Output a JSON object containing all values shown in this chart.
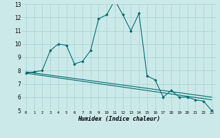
{
  "xlabel": "Humidex (Indice chaleur)",
  "background_color": "#cce9ea",
  "grid_color": "#aad4d5",
  "line_color": "#006b6b",
  "marker_color": "#006b6b",
  "xlim": [
    -0.5,
    23.5
  ],
  "ylim": [
    5,
    13
  ],
  "xticks": [
    0,
    1,
    2,
    3,
    4,
    5,
    6,
    7,
    8,
    9,
    10,
    11,
    12,
    13,
    14,
    15,
    16,
    17,
    18,
    19,
    20,
    21,
    22,
    23
  ],
  "yticks": [
    5,
    6,
    7,
    8,
    9,
    10,
    11,
    12,
    13
  ],
  "series1_x": [
    0,
    1,
    2,
    3,
    4,
    5,
    6,
    7,
    8,
    9,
    10,
    11,
    12,
    13,
    14,
    15,
    16,
    17,
    18,
    19,
    20,
    21,
    22,
    23
  ],
  "series1_y": [
    7.8,
    7.9,
    8.0,
    9.5,
    10.0,
    9.9,
    8.5,
    8.7,
    9.5,
    11.9,
    12.2,
    13.3,
    12.2,
    11.0,
    12.3,
    7.6,
    7.3,
    6.0,
    6.5,
    6.0,
    6.0,
    5.8,
    5.7,
    5.0
  ],
  "series2_x": [
    0,
    23
  ],
  "series2_y": [
    7.8,
    5.8
  ],
  "series3_x": [
    0,
    23
  ],
  "series3_y": [
    7.9,
    6.0
  ]
}
